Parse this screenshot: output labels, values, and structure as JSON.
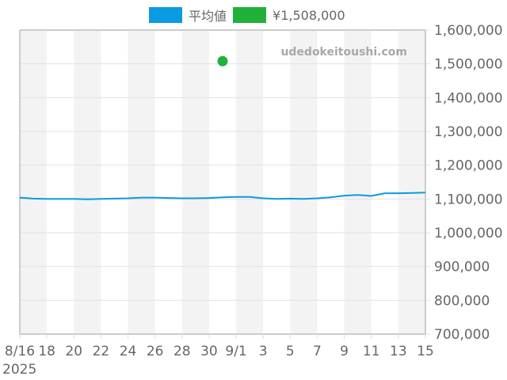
{
  "legend": {
    "items": [
      {
        "label": "平均値",
        "color": "#0a9be0"
      },
      {
        "label": "¥1,508,000",
        "color": "#22b03c"
      }
    ]
  },
  "watermark": "udedokeitoushi.com",
  "chart_data": {
    "type": "line",
    "title": "",
    "xlabel": "",
    "ylabel": "",
    "year_label": "2025",
    "x_tick_labels": [
      "8/16",
      "18",
      "20",
      "22",
      "24",
      "26",
      "28",
      "30",
      "9/1",
      "3",
      "5",
      "7",
      "9",
      "11",
      "13",
      "15"
    ],
    "y_tick_labels": [
      "1,600,000",
      "1,500,000",
      "1,400,000",
      "1,300,000",
      "1,200,000",
      "1,100,000",
      "1,000,000",
      "900,000",
      "800,000",
      "700,000"
    ],
    "ylim": [
      700000,
      1600000
    ],
    "y_ticks": [
      700000,
      800000,
      900000,
      1000000,
      1100000,
      1200000,
      1300000,
      1400000,
      1500000,
      1600000
    ],
    "x": [
      "8/16",
      "8/17",
      "8/18",
      "8/19",
      "8/20",
      "8/21",
      "8/22",
      "8/23",
      "8/24",
      "8/25",
      "8/26",
      "8/27",
      "8/28",
      "8/29",
      "8/30",
      "8/31",
      "9/1",
      "9/2",
      "9/3",
      "9/4",
      "9/5",
      "9/6",
      "9/7",
      "9/8",
      "9/9",
      "9/10",
      "9/11",
      "9/12",
      "9/13",
      "9/14",
      "9/15"
    ],
    "series": [
      {
        "name": "平均値",
        "color": "#0a9be0",
        "values": [
          1104000,
          1101000,
          1100000,
          1100000,
          1100000,
          1099000,
          1100000,
          1101000,
          1102000,
          1104000,
          1104000,
          1103000,
          1102000,
          1102000,
          1103000,
          1105000,
          1106000,
          1106000,
          1102000,
          1100000,
          1101000,
          1100000,
          1102000,
          1105000,
          1110000,
          1112000,
          1109000,
          1117000,
          1117000,
          1118000,
          1119000
        ]
      },
      {
        "name": "¥1,508,000",
        "color": "#22b03c",
        "type": "scatter",
        "points": [
          {
            "x": "8/31",
            "y": 1508000
          }
        ]
      }
    ],
    "grid": true,
    "legend_position": "top",
    "y_axis_side": "right",
    "background_bands": "alternating weekly (2-day) grey stripes"
  }
}
